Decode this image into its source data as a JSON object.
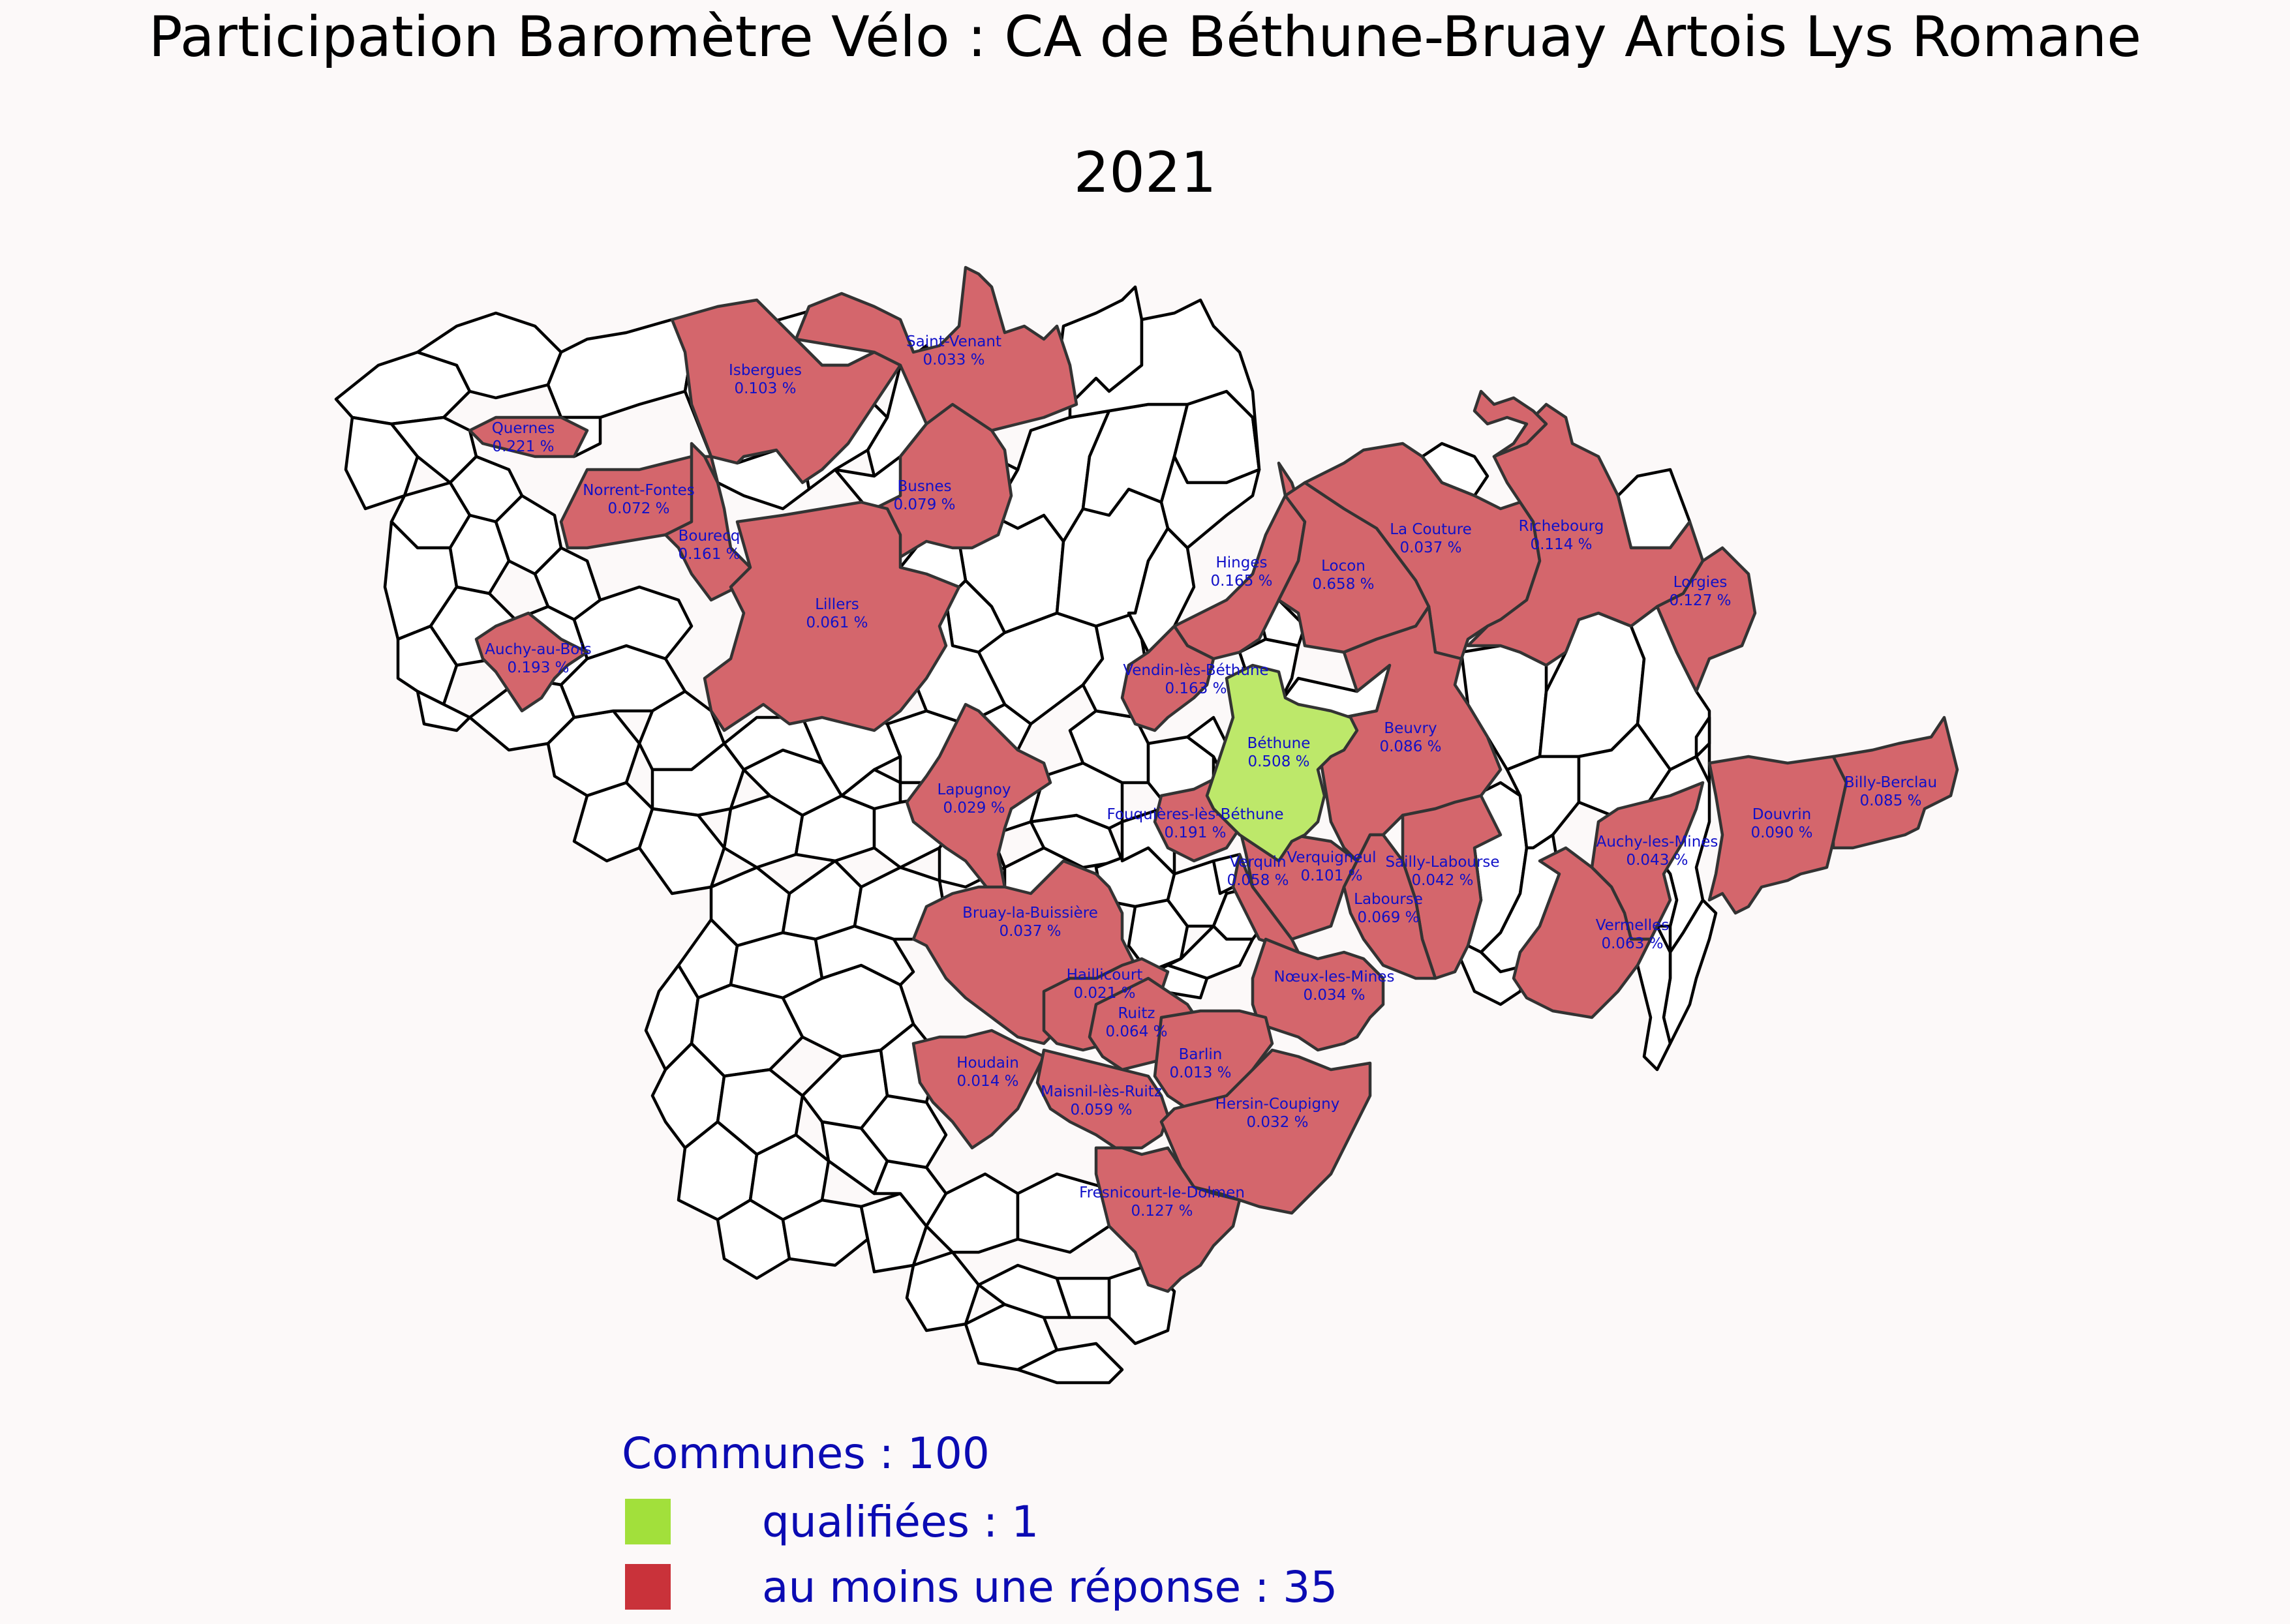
{
  "title": "Participation Baromètre Vélo : CA de Béthune-Bruay Artois Lys Romane",
  "year": "2021",
  "colors": {
    "qualified": "#a2e03b",
    "responded": "#c9323a",
    "qualified_fill": "#bde86a",
    "responded_fill": "#d4666c",
    "none_fill": "#ffffff",
    "label_text": "#1010c8",
    "legend_text": "#0b0bb3"
  },
  "legend": {
    "communes_label": "Communes : 100",
    "qualified_label": "qualifiées : 1",
    "responded_label": "au moins une réponse : 35"
  },
  "communes": [
    {
      "name": "Saint-Venant",
      "value": "0.033 %",
      "status": "responded"
    },
    {
      "name": "Isbergues",
      "value": "0.103 %",
      "status": "responded"
    },
    {
      "name": "Quernes",
      "value": "0.221 %",
      "status": "responded"
    },
    {
      "name": "Norrent-Fontes",
      "value": "0.072 %",
      "status": "responded"
    },
    {
      "name": "Bourecq",
      "value": "0.161 %",
      "status": "responded"
    },
    {
      "name": "Busnes",
      "value": "0.079 %",
      "status": "responded"
    },
    {
      "name": "Lillers",
      "value": "0.061 %",
      "status": "responded"
    },
    {
      "name": "Auchy-au-Bois",
      "value": "0.193 %",
      "status": "responded"
    },
    {
      "name": "Hinges",
      "value": "0.165 %",
      "status": "responded"
    },
    {
      "name": "Locon",
      "value": "0.658 %",
      "status": "responded"
    },
    {
      "name": "La Couture",
      "value": "0.037 %",
      "status": "responded"
    },
    {
      "name": "Richebourg",
      "value": "0.114 %",
      "status": "responded"
    },
    {
      "name": "Lorgies",
      "value": "0.127 %",
      "status": "responded"
    },
    {
      "name": "Vendin-lès-Béthune",
      "value": "0.163 %",
      "status": "responded"
    },
    {
      "name": "Béthune",
      "value": "0.508 %",
      "status": "qualified"
    },
    {
      "name": "Beuvry",
      "value": "0.086 %",
      "status": "responded"
    },
    {
      "name": "Lapugnoy",
      "value": "0.029 %",
      "status": "responded"
    },
    {
      "name": "Fouquières-lès-Béthune",
      "value": "0.191 %",
      "status": "responded"
    },
    {
      "name": "Verquigneul",
      "value": "0.101 %",
      "status": "responded"
    },
    {
      "name": "Verquin",
      "value": "0.058 %",
      "status": "responded"
    },
    {
      "name": "Sailly-Labourse",
      "value": "0.042 %",
      "status": "responded"
    },
    {
      "name": "Labourse",
      "value": "0.069 %",
      "status": "responded"
    },
    {
      "name": "Auchy-les-Mines",
      "value": "0.043 %",
      "status": "responded"
    },
    {
      "name": "Douvrin",
      "value": "0.090 %",
      "status": "responded"
    },
    {
      "name": "Billy-Berclau",
      "value": "0.085 %",
      "status": "responded"
    },
    {
      "name": "Vermelles",
      "value": "0.063 %",
      "status": "responded"
    },
    {
      "name": "Bruay-la-Buissière",
      "value": "0.037 %",
      "status": "responded"
    },
    {
      "name": "Haillicourt",
      "value": "0.021 %",
      "status": "responded"
    },
    {
      "name": "Nœux-les-Mines",
      "value": "0.034 %",
      "status": "responded"
    },
    {
      "name": "Ruitz",
      "value": "0.064 %",
      "status": "responded"
    },
    {
      "name": "Barlin",
      "value": "0.013 %",
      "status": "responded"
    },
    {
      "name": "Houdain",
      "value": "0.014 %",
      "status": "responded"
    },
    {
      "name": "Maisnil-lès-Ruitz",
      "value": "0.059 %",
      "status": "responded"
    },
    {
      "name": "Hersin-Coupigny",
      "value": "0.032 %",
      "status": "responded"
    },
    {
      "name": "Fresnicourt-le-Dolmen",
      "value": "0.127 %",
      "status": "responded"
    }
  ]
}
